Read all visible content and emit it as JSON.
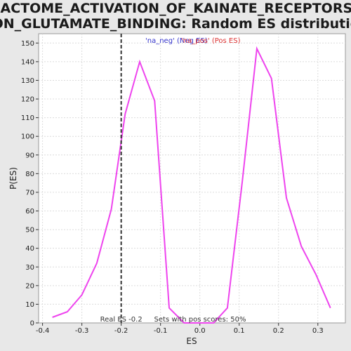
{
  "chart_data": {
    "type": "line",
    "title_line1": "REACTOME_ACTIVATION_OF_KAINATE_RECEPTORS_U",
    "title_line2": "PON_GLUTAMATE_BINDING: Random ES distribution",
    "xlabel": "ES",
    "ylabel": "P(ES)",
    "xlim": [
      -0.41,
      0.37
    ],
    "ylim": [
      0,
      155
    ],
    "xticks": [
      -0.4,
      -0.3,
      -0.2,
      -0.1,
      0.0,
      0.1,
      0.2,
      0.3
    ],
    "xtick_labels": [
      "-0.4",
      "-0.3",
      "-0.2",
      "-0.1",
      "0.0",
      "0.1",
      "0.2",
      "0.3"
    ],
    "yticks": [
      0,
      10,
      20,
      30,
      40,
      50,
      60,
      70,
      80,
      90,
      100,
      110,
      120,
      130,
      140,
      150
    ],
    "grid": true,
    "line_color": "#ee44ee",
    "series": [
      {
        "x": [
          -0.375,
          -0.337,
          -0.3,
          -0.262,
          -0.225,
          -0.19,
          -0.153,
          -0.115,
          -0.078,
          -0.04,
          0.0,
          0.035,
          0.07,
          0.108,
          0.145,
          0.182,
          0.22,
          0.258,
          0.295,
          0.332
        ],
        "y": [
          3,
          6,
          15,
          32,
          61,
          112,
          140,
          119,
          8,
          0,
          0,
          0,
          8,
          76,
          147,
          131,
          67,
          41,
          26,
          8
        ]
      }
    ],
    "real_es": -0.2,
    "real_es_label": "Real ES -0.2",
    "pos_scores_label": "Sets with pos scores: 50%",
    "legend": [
      {
        "label": "'na_neg' (Neg ES)",
        "color": "#3333cc"
      },
      {
        "label": "'na_pos' (Pos ES)",
        "color": "#dd3333"
      }
    ]
  }
}
